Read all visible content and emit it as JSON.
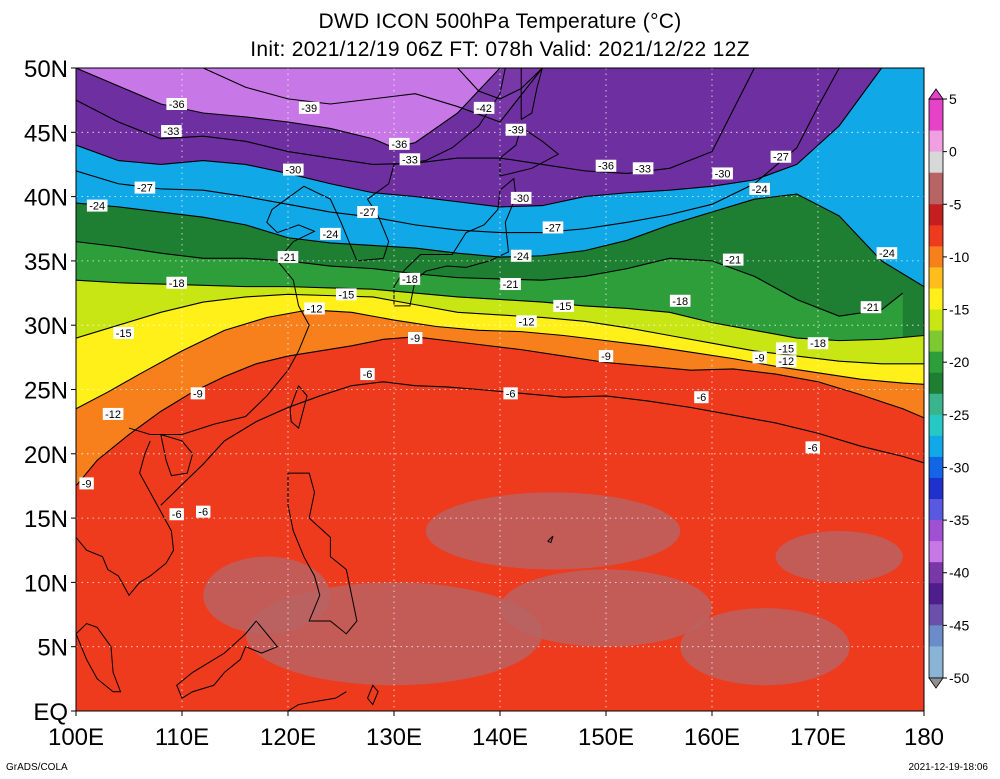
{
  "title": {
    "line1": "DWD ICON 500hPa Temperature (°C)",
    "line2": "Init: 2021/12/19 06Z  FT: 078h  Valid: 2021/12/22 12Z"
  },
  "axes": {
    "lat_labels": [
      "50N",
      "45N",
      "40N",
      "35N",
      "30N",
      "25N",
      "20N",
      "15N",
      "10N",
      "5N",
      "EQ"
    ],
    "lat_values": [
      50,
      45,
      40,
      35,
      30,
      25,
      20,
      15,
      10,
      5,
      0
    ],
    "lon_labels": [
      "100E",
      "110E",
      "120E",
      "130E",
      "140E",
      "150E",
      "160E",
      "170E",
      "180"
    ],
    "lon_values": [
      100,
      110,
      120,
      130,
      140,
      150,
      160,
      170,
      180
    ],
    "lon_range": [
      100,
      180
    ],
    "lat_range": [
      0,
      50
    ],
    "grid": true
  },
  "colorbar": {
    "labels": [
      "5",
      "0",
      "-5",
      "-10",
      "-15",
      "-20",
      "-25",
      "-30",
      "-35",
      "-40",
      "-45",
      "-50"
    ],
    "values": [
      5,
      0,
      -5,
      -10,
      -15,
      -20,
      -25,
      -30,
      -35,
      -40,
      -45,
      -50
    ],
    "range": [
      -50,
      5
    ],
    "stops": [
      {
        "v": 5,
        "c": "#e642c8"
      },
      {
        "v": 2,
        "c": "#f0a0e0"
      },
      {
        "v": 0,
        "c": "#d8d8d8"
      },
      {
        "v": -2,
        "c": "#b86464"
      },
      {
        "v": -5,
        "c": "#c41e1e"
      },
      {
        "v": -7,
        "c": "#ee3b1e"
      },
      {
        "v": -9,
        "c": "#f8801c"
      },
      {
        "v": -11,
        "c": "#fdbe1c"
      },
      {
        "v": -13,
        "c": "#fff019"
      },
      {
        "v": -15,
        "c": "#c8e614"
      },
      {
        "v": -17,
        "c": "#7ec832"
      },
      {
        "v": -19,
        "c": "#2e9e3a"
      },
      {
        "v": -21,
        "c": "#1e7e32"
      },
      {
        "v": -23,
        "c": "#3ab48c"
      },
      {
        "v": -25,
        "c": "#26c8c4"
      },
      {
        "v": -27,
        "c": "#10a8e6"
      },
      {
        "v": -29,
        "c": "#1464e6"
      },
      {
        "v": -31,
        "c": "#2030cc"
      },
      {
        "v": -33,
        "c": "#5858e0"
      },
      {
        "v": -35,
        "c": "#a050d2"
      },
      {
        "v": -37,
        "c": "#c878e6"
      },
      {
        "v": -39,
        "c": "#7838a8"
      },
      {
        "v": -41,
        "c": "#4e1e8a"
      },
      {
        "v": -43,
        "c": "#6a50aa"
      },
      {
        "v": -45,
        "c": "#6a8cc8"
      },
      {
        "v": -47,
        "c": "#8ab4d6"
      },
      {
        "v": -50,
        "c": "#909090"
      }
    ]
  },
  "colors": {
    "land_outline": "#000000",
    "background": "#ffffff"
  },
  "contours": [
    {
      "value": -36,
      "label": "-36",
      "lon": [
        100,
        104,
        108,
        112,
        116,
        120,
        124,
        128,
        130,
        132,
        136,
        140
      ],
      "lat": [
        50,
        48.6,
        47.2,
        46.5,
        46.2,
        45.8,
        45.3,
        44.5,
        43.8,
        44.2,
        46.5,
        50
      ]
    },
    {
      "value": -39,
      "label": "-39",
      "lon": [
        112,
        116,
        120,
        124,
        128,
        132,
        136,
        140,
        144
      ],
      "lat": [
        50,
        48.5,
        47.6,
        47.2,
        47.6,
        48,
        47,
        45.8,
        50
      ]
    },
    {
      "value": -42,
      "label": "-42",
      "lon": [
        136,
        138,
        140,
        142,
        144
      ],
      "lat": [
        50,
        48.2,
        47.6,
        48.4,
        50
      ]
    },
    {
      "value": -33,
      "label": "-33",
      "lon": [
        100,
        104,
        108,
        112,
        116,
        120,
        124,
        128,
        132,
        136,
        140,
        144,
        148,
        152,
        156,
        160,
        164
      ],
      "lat": [
        47.5,
        45.8,
        44.5,
        44.7,
        44.3,
        43.5,
        43,
        42.5,
        42.6,
        43,
        43,
        42.5,
        42,
        41.8,
        42.2,
        43.5,
        50
      ]
    },
    {
      "value": -30,
      "label": "-30",
      "lon": [
        100,
        104,
        108,
        112,
        116,
        120,
        124,
        128,
        132,
        136,
        140,
        144,
        148,
        152,
        156,
        160,
        164,
        168,
        172,
        176,
        180
      ],
      "lat": [
        44,
        42.8,
        42.5,
        42.8,
        42.5,
        41.8,
        41,
        40.3,
        40,
        39.6,
        39.2,
        39.3,
        40,
        40.3,
        40.5,
        40.8,
        41.3,
        42.5,
        45.5,
        50,
        50
      ]
    },
    {
      "value": -27,
      "label": "-27",
      "lon": [
        100,
        104,
        108,
        112,
        116,
        120,
        124,
        128,
        132,
        136,
        140,
        144,
        148,
        152,
        156,
        160,
        164,
        168,
        170,
        172
      ],
      "lat": [
        42,
        41,
        40.6,
        40.5,
        40,
        39.4,
        38.8,
        38.4,
        37.8,
        37.4,
        37.2,
        37.2,
        37.5,
        38,
        38.6,
        39.4,
        41,
        43.8,
        47,
        50
      ]
    },
    {
      "value": -24,
      "label": "-24",
      "lon": [
        100,
        104,
        108,
        112,
        116,
        120,
        124,
        128,
        132,
        136,
        140,
        144,
        148,
        152,
        156,
        160,
        164,
        168,
        172,
        176,
        180
      ],
      "lat": [
        39.5,
        39.2,
        38.8,
        38.4,
        37.8,
        36.8,
        36.4,
        36.2,
        36,
        35.6,
        35.3,
        35.4,
        35.8,
        36.6,
        37.8,
        38.8,
        39.8,
        40.2,
        38.5,
        35,
        33
      ]
    },
    {
      "value": -21,
      "label": "-21",
      "lon": [
        100,
        104,
        108,
        112,
        116,
        120,
        124,
        128,
        132,
        136,
        140,
        144,
        148,
        152,
        156,
        160,
        164,
        168,
        172,
        176,
        178
      ],
      "lat": [
        36.5,
        36.1,
        35.6,
        35.2,
        35.2,
        35,
        34.6,
        34.4,
        34,
        33.7,
        33.6,
        33.5,
        33.8,
        34.4,
        35.2,
        35,
        33.8,
        32,
        30.7,
        31.2,
        32.5
      ]
    },
    {
      "value": -18,
      "label": "-18",
      "lon": [
        100,
        104,
        108,
        112,
        116,
        120,
        124,
        128,
        132,
        136,
        140,
        144,
        148,
        152,
        156,
        160,
        164,
        168,
        172,
        176,
        180
      ],
      "lat": [
        33.5,
        33.3,
        33.2,
        33.1,
        33,
        33,
        32.9,
        32.8,
        32.5,
        32.2,
        32,
        31.8,
        31.5,
        31.3,
        31,
        30.2,
        29.6,
        29,
        28.8,
        28.9,
        29.2
      ]
    },
    {
      "value": -15,
      "label": "-15",
      "lon": [
        100,
        104,
        108,
        112,
        116,
        120,
        124,
        128,
        132,
        136,
        140,
        144,
        148,
        152,
        156,
        160,
        164,
        168,
        172,
        176,
        180
      ],
      "lat": [
        29,
        30,
        31,
        31.8,
        32.2,
        32.4,
        32.3,
        32.2,
        31.6,
        31,
        30.8,
        30.6,
        30.3,
        29.8,
        29.2,
        28.6,
        28,
        27.6,
        27.2,
        27,
        27
      ]
    },
    {
      "value": -12,
      "label": "-12",
      "lon": [
        100,
        103,
        106,
        110,
        114,
        118,
        122,
        126,
        130,
        134,
        138,
        142,
        146,
        150,
        154,
        158,
        162,
        166,
        170,
        174,
        178,
        180
      ],
      "lat": [
        23.5,
        24.8,
        26.2,
        28,
        29.6,
        30.6,
        31.2,
        31,
        30.4,
        29.9,
        29.6,
        29.5,
        29.2,
        28.8,
        28.4,
        27.9,
        27.4,
        26.8,
        26.3,
        25.8,
        25.5,
        25.4
      ]
    },
    {
      "value": -9,
      "label": "-9",
      "lon": [
        100,
        102,
        105,
        108,
        111,
        114,
        117,
        120,
        123,
        126,
        129,
        132,
        135,
        138,
        142,
        146,
        150,
        154,
        158,
        162,
        166,
        170,
        174,
        178,
        180
      ],
      "lat": [
        17.5,
        19.5,
        21.5,
        23.3,
        24.8,
        26,
        27,
        27.6,
        28,
        28.4,
        28.9,
        29.1,
        28.8,
        28.5,
        28.1,
        27.6,
        27.1,
        26.8,
        26.5,
        26.6,
        26.2,
        25.6,
        24.6,
        23.5,
        22.8
      ]
    },
    {
      "value": -6,
      "label": "-6",
      "lon": [
        108,
        110,
        112,
        114,
        117,
        120,
        123,
        126,
        129,
        132,
        135,
        138,
        142,
        146,
        150,
        154,
        158,
        162,
        166,
        170,
        174,
        178,
        180
      ],
      "lat": [
        16,
        17.6,
        19.2,
        21,
        22.5,
        23.6,
        24.5,
        25.3,
        25.6,
        25.3,
        25.2,
        25,
        24.7,
        24.4,
        24.5,
        24.1,
        23.6,
        23,
        22.4,
        21.6,
        20.6,
        19.8,
        19.3
      ]
    }
  ],
  "contour_labels": [
    {
      "text": "-36",
      "lon": 109.5,
      "lat": 47.2
    },
    {
      "text": "-39",
      "lon": 122,
      "lat": 46.9
    },
    {
      "text": "-42",
      "lon": 138.5,
      "lat": 46.9
    },
    {
      "text": "-39",
      "lon": 141.5,
      "lat": 45.2
    },
    {
      "text": "-36",
      "lon": 130.5,
      "lat": 44.1
    },
    {
      "text": "-33",
      "lon": 109,
      "lat": 45.1
    },
    {
      "text": "-33",
      "lon": 131.5,
      "lat": 42.9
    },
    {
      "text": "-36",
      "lon": 150,
      "lat": 42.4
    },
    {
      "text": "-33",
      "lon": 153.5,
      "lat": 42.2
    },
    {
      "text": "-27",
      "lon": 166.5,
      "lat": 43.1
    },
    {
      "text": "-30",
      "lon": 120.5,
      "lat": 42.1
    },
    {
      "text": "-30",
      "lon": 161,
      "lat": 41.8
    },
    {
      "text": "-27",
      "lon": 106.5,
      "lat": 40.7
    },
    {
      "text": "-24",
      "lon": 164.5,
      "lat": 40.6
    },
    {
      "text": "-30",
      "lon": 142,
      "lat": 39.9
    },
    {
      "text": "-24",
      "lon": 102,
      "lat": 39.3
    },
    {
      "text": "-27",
      "lon": 127.5,
      "lat": 38.8
    },
    {
      "text": "-27",
      "lon": 145,
      "lat": 37.6
    },
    {
      "text": "-24",
      "lon": 124,
      "lat": 37.1
    },
    {
      "text": "-24",
      "lon": 176.5,
      "lat": 35.6
    },
    {
      "text": "-24",
      "lon": 142,
      "lat": 35.4
    },
    {
      "text": "-21",
      "lon": 120,
      "lat": 35.3
    },
    {
      "text": "-21",
      "lon": 162,
      "lat": 35.1
    },
    {
      "text": "-18",
      "lon": 131.5,
      "lat": 33.6
    },
    {
      "text": "-18",
      "lon": 109.5,
      "lat": 33.3
    },
    {
      "text": "-21",
      "lon": 141,
      "lat": 33.2
    },
    {
      "text": "-15",
      "lon": 125.5,
      "lat": 32.4
    },
    {
      "text": "-12",
      "lon": 122.5,
      "lat": 31.3
    },
    {
      "text": "-18",
      "lon": 157,
      "lat": 31.9
    },
    {
      "text": "-15",
      "lon": 146,
      "lat": 31.5
    },
    {
      "text": "-21",
      "lon": 175,
      "lat": 31.4
    },
    {
      "text": "-12",
      "lon": 142.5,
      "lat": 30.3
    },
    {
      "text": "-15",
      "lon": 104.5,
      "lat": 29.4
    },
    {
      "text": "-9",
      "lon": 132,
      "lat": 29
    },
    {
      "text": "-18",
      "lon": 170,
      "lat": 28.6
    },
    {
      "text": "-15",
      "lon": 167,
      "lat": 28.2
    },
    {
      "text": "-9",
      "lon": 150,
      "lat": 27.6
    },
    {
      "text": "-9",
      "lon": 164.5,
      "lat": 27.5
    },
    {
      "text": "-12",
      "lon": 167,
      "lat": 27.2
    },
    {
      "text": "-6",
      "lon": 127.5,
      "lat": 26.2
    },
    {
      "text": "-9",
      "lon": 111.5,
      "lat": 24.7
    },
    {
      "text": "-6",
      "lon": 141,
      "lat": 24.7
    },
    {
      "text": "-6",
      "lon": 159,
      "lat": 24.4
    },
    {
      "text": "-12",
      "lon": 103.5,
      "lat": 23.1
    },
    {
      "text": "-6",
      "lon": 169.5,
      "lat": 20.5
    },
    {
      "text": "-9",
      "lon": 101,
      "lat": 17.7
    },
    {
      "text": "-6",
      "lon": 109.5,
      "lat": 15.3
    },
    {
      "text": "-6",
      "lon": 112,
      "lat": 15.5
    }
  ],
  "footer": {
    "credit": "GrADS/COLA",
    "timestamp": "2021-12-19-18:06"
  }
}
